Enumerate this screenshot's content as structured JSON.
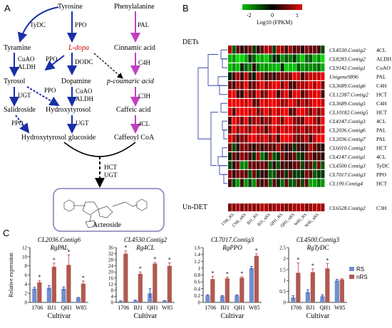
{
  "panels": {
    "a": "A",
    "b": "B",
    "c": "C"
  },
  "pathway": {
    "tydc": "TyDC",
    "ppo_top": "PPO",
    "tyrosine": "Tyrosine",
    "phenylalanine": "Phenylalanine",
    "pal": "PAL",
    "tyramine": "Tyramine",
    "ldopa": "L-dopa",
    "cinnamic": "Cinnamic acid",
    "ppo_mid": "PPO",
    "dodc": "DODC",
    "cuao1": "CuAO",
    "aldh1": "ALDH",
    "c4h": "C4H",
    "tyrosol": "Tyrosol",
    "dopamine": "Dopamine",
    "pcoumaric": "p-coumaric acid",
    "ugt1": "UGT",
    "ppo_low": "PPO",
    "cuao2": "CuAO",
    "aldh2": "ALDH",
    "c3h": "C3H",
    "salidroside": "Salidroside",
    "hydroxytyrosol": "Hydroxytyrosol",
    "caffeic": "Caffeic acid",
    "ppo_bot": "PPO",
    "ugt2": "UGT",
    "fourcl": "4CL",
    "htglucoside": "Hydroxytyrosol glucoside",
    "caffeoylcoa": "Caffeoyl CoA",
    "hct": "HCT",
    "ugt3": "UGT",
    "acteoside": "Acteoside"
  },
  "heatmap": {
    "scale_min": "-2",
    "scale_mid": "0",
    "scale_max": "1",
    "scale_title": "Log10 (FPKM)",
    "dets_label": "DETs",
    "undet_label": "Un-DET",
    "columns": [
      "1706_RS",
      "1706_nRS",
      "BJ1_RS",
      "BJ1_nRS",
      "QH1_RS",
      "QH1_nRS",
      "W85_RS",
      "W85_nRS"
    ],
    "rows": [
      {
        "gene": "CL4530.Contig2",
        "enzyme": "4CL"
      },
      {
        "gene": "CL8283.Contig2",
        "enzyme": "ALDH"
      },
      {
        "gene": "CL9142.Contig1",
        "enzyme": "CuAO"
      },
      {
        "gene": "Unigene9896",
        "enzyme": "PAL"
      },
      {
        "gene": "CL3689.Contig6",
        "enzyme": "C4H"
      },
      {
        "gene": "CL12387.Contig2",
        "enzyme": "HCT"
      },
      {
        "gene": "CL3689.Contig5",
        "enzyme": "C4H"
      },
      {
        "gene": "CL10182.Contig5",
        "enzyme": "HCT"
      },
      {
        "gene": "CL4147.Contig3",
        "enzyme": "4CL"
      },
      {
        "gene": "CL2036.Contig6",
        "enzyme": "PAL"
      },
      {
        "gene": "CL2036.Contig7",
        "enzyme": "PAL"
      },
      {
        "gene": "CL6010.Contig3",
        "enzyme": "HCT"
      },
      {
        "gene": "CL4147.Contig1",
        "enzyme": "4CL"
      },
      {
        "gene": "CL4500.Contig3",
        "enzyme": "TyDC"
      },
      {
        "gene": "CL7017.Contig3",
        "enzyme": "PPO"
      },
      {
        "gene": "CL199.Contig4",
        "enzyme": "HCT"
      }
    ],
    "undet_row": {
      "gene": "CL6528.Contig2",
      "enzyme": "C3H"
    },
    "colors": {
      "low": "#00c000",
      "mid": "#000000",
      "high": "#e01010"
    }
  },
  "chart_data": [
    {
      "type": "bar",
      "title": "CL2036.Contig6",
      "subtitle": "RgPAL",
      "categories": [
        "1706",
        "BJ1",
        "QH1",
        "W85"
      ],
      "xlabel": "Cultivar",
      "ylabel": "Relative expression",
      "ylim": [
        0,
        12
      ],
      "yticks": [
        0,
        2,
        4,
        6,
        8,
        10,
        12
      ],
      "series": [
        {
          "name": "RS",
          "values": [
            3.0,
            3.2,
            3.0,
            1.0
          ],
          "errors": [
            0.3,
            0.5,
            0.4,
            0.1
          ]
        },
        {
          "name": "nRS",
          "values": [
            4.4,
            7.8,
            8.2,
            4.1
          ],
          "errors": [
            0.4,
            0.8,
            2.2,
            0.6
          ]
        }
      ],
      "significant": [
        true,
        true,
        true,
        true
      ]
    },
    {
      "type": "bar",
      "title": "CL4530.Contig2",
      "subtitle": "Rg4CL",
      "categories": [
        "1706",
        "BJ1",
        "QH1",
        "W85"
      ],
      "xlabel": "Cultivar",
      "ylabel": "",
      "ylim": [
        0,
        36
      ],
      "yticks": [
        0,
        4,
        8,
        12,
        16,
        20,
        24,
        28,
        32,
        36
      ],
      "series": [
        {
          "name": "RS",
          "values": [
            0.8,
            1.2,
            6.0,
            1.0
          ],
          "errors": [
            0.2,
            0.3,
            3.0,
            0.2
          ]
        },
        {
          "name": "nRS",
          "values": [
            32.0,
            18.8,
            25.5,
            24.0
          ],
          "errors": [
            1.8,
            1.2,
            0.8,
            2.0
          ]
        }
      ],
      "significant": [
        true,
        true,
        true,
        true
      ]
    },
    {
      "type": "bar",
      "title": "CL7017.Contig3",
      "subtitle": "RgPPO",
      "categories": [
        "1706",
        "BJ1",
        "QH1",
        "W85"
      ],
      "xlabel": "Cultivar",
      "ylabel": "",
      "ylim": [
        0,
        1.6
      ],
      "yticks": [
        0,
        0.2,
        0.4,
        0.6,
        0.8,
        1.0,
        1.2,
        1.4,
        1.6
      ],
      "series": [
        {
          "name": "RS",
          "values": [
            0.2,
            0.18,
            0.2,
            1.0
          ],
          "errors": [
            0.02,
            0.02,
            0.02,
            0.05
          ]
        },
        {
          "name": "nRS",
          "values": [
            0.68,
            0.7,
            0.72,
            1.36
          ],
          "errors": [
            0.08,
            0.04,
            0.03,
            0.06
          ]
        }
      ],
      "significant": [
        true,
        true,
        true,
        true
      ]
    },
    {
      "type": "bar",
      "title": "CL4500.Contig3",
      "subtitle": "RgTyDC",
      "categories": [
        "1706",
        "BJ1",
        "QH1",
        "W85"
      ],
      "xlabel": "Cultivar",
      "ylabel": "",
      "ylim": [
        0,
        2.5
      ],
      "yticks": [
        0,
        0.5,
        1,
        1.5,
        2,
        2.5
      ],
      "series": [
        {
          "name": "RS",
          "values": [
            0.22,
            0.47,
            0.28,
            1.0
          ],
          "errors": [
            0.08,
            0.1,
            0.06,
            0.05
          ]
        },
        {
          "name": "nRS",
          "values": [
            1.35,
            1.38,
            1.55,
            1.05
          ],
          "errors": [
            0.45,
            0.15,
            0.22,
            0.03
          ]
        }
      ],
      "significant": [
        true,
        true,
        true,
        false
      ]
    }
  ],
  "legend": {
    "rs": "RS",
    "nrs": "nRS",
    "rs_color": "#6f8fcf",
    "nrs_color": "#b05a52"
  }
}
